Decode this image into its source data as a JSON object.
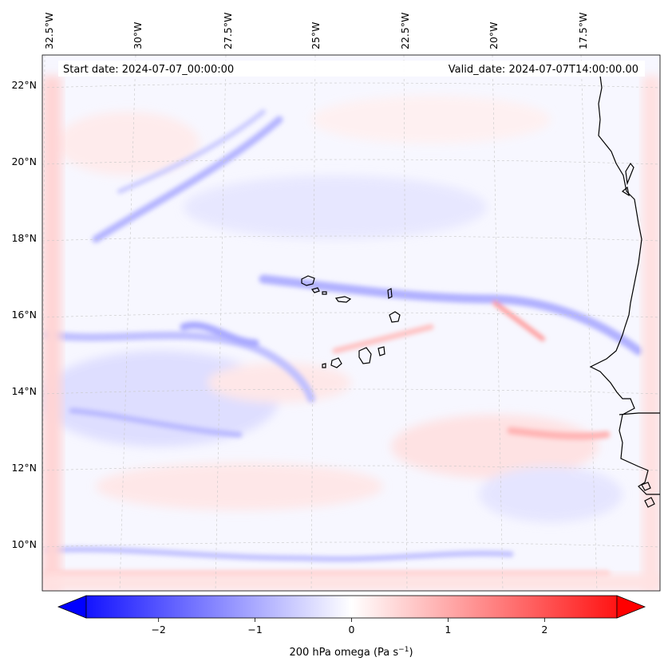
{
  "map": {
    "start_label": "Start date: 2024-07-07_00:00:00",
    "valid_label": "Valid_date: 2024-07-07T14:00:00.00",
    "lon_labels": [
      "32.5°W",
      "30°W",
      "27.5°W",
      "25°W",
      "22.5°W",
      "20°W",
      "17.5°W"
    ],
    "lat_labels": [
      "22°N",
      "20°N",
      "18°N",
      "16°N",
      "14°N",
      "12°N",
      "10°N"
    ],
    "colors": {
      "coast": "#000000",
      "grid": "#c8c8c8",
      "neg": "#0000ff",
      "pos": "#ff0000",
      "zero": "#ffffff"
    }
  },
  "colorbar": {
    "label": "200 hPa omega (Pa s",
    "label_exp": "−1",
    "label_close": ")",
    "ticks": [
      "−2",
      "−1",
      "0",
      "1",
      "2"
    ],
    "range": [
      -2.75,
      2.75
    ],
    "tick_values": [
      -2,
      -1,
      0,
      1,
      2
    ],
    "extend": "both",
    "colormap": "bwr"
  }
}
